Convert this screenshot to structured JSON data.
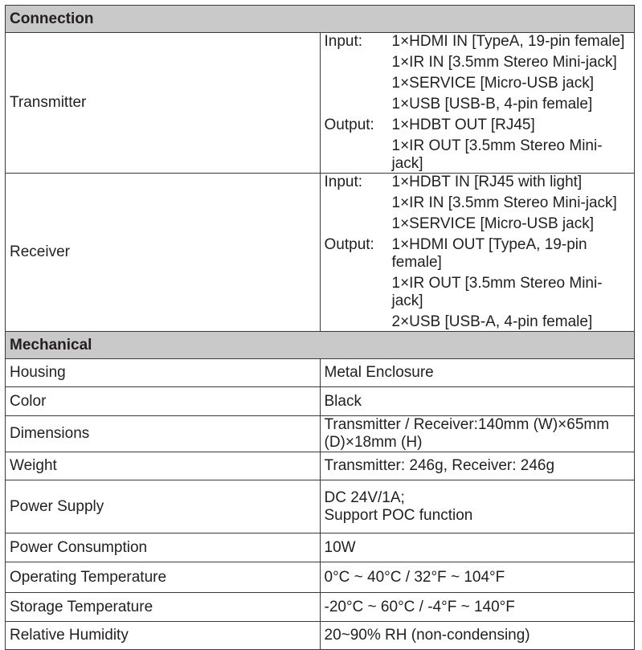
{
  "connection": {
    "title": "Connection",
    "transmitter": {
      "label": "Transmitter",
      "lines": [
        {
          "io": "Input:",
          "v": "1×HDMI IN [TypeA, 19-pin female]"
        },
        {
          "io": "",
          "v": "1×IR IN [3.5mm Stereo Mini-jack]"
        },
        {
          "io": "",
          "v": "1×SERVICE [Micro-USB jack]"
        },
        {
          "io": "",
          "v": "1×USB [USB-B, 4-pin female]"
        },
        {
          "io": "Output:",
          "v": "1×HDBT OUT [RJ45]"
        },
        {
          "io": "",
          "v": "1×IR OUT [3.5mm Stereo Mini-jack]"
        }
      ]
    },
    "receiver": {
      "label": "Receiver",
      "lines": [
        {
          "io": "Input:",
          "v": "1×HDBT IN [RJ45 with light]"
        },
        {
          "io": "",
          "v": "1×IR IN [3.5mm Stereo Mini-jack]"
        },
        {
          "io": "",
          "v": "1×SERVICE [Micro-USB jack]"
        },
        {
          "io": "Output:",
          "v": "1×HDMI OUT [TypeA, 19-pin female]"
        },
        {
          "io": "",
          "v": "1×IR OUT [3.5mm Stereo Mini-jack]"
        },
        {
          "io": "",
          "v": "2×USB [USB-A, 4-pin female]"
        }
      ]
    }
  },
  "mechanical": {
    "title": "Mechanical",
    "rows": [
      {
        "k": "Housing",
        "v": "Metal Enclosure"
      },
      {
        "k": "Color",
        "v": "Black"
      },
      {
        "k": "Dimensions",
        "v": "Transmitter / Receiver:140mm (W)×65mm (D)×18mm (H)"
      },
      {
        "k": "Weight",
        "v": "Transmitter: 246g, Receiver: 246g"
      },
      {
        "k": "Power Supply",
        "v": "DC 24V/1A;",
        "v2": "Support POC function"
      },
      {
        "k": "Power Consumption",
        "v": "10W"
      },
      {
        "k": "Operating Temperature",
        "v": "0°C ~ 40°C / 32°F ~ 104°F"
      },
      {
        "k": "Storage Temperature",
        "v": "-20°C ~ 60°C / -4°F ~ 140°F"
      },
      {
        "k": "Relative Humidity",
        "v": "20~90% RH (non-condensing)"
      }
    ]
  }
}
